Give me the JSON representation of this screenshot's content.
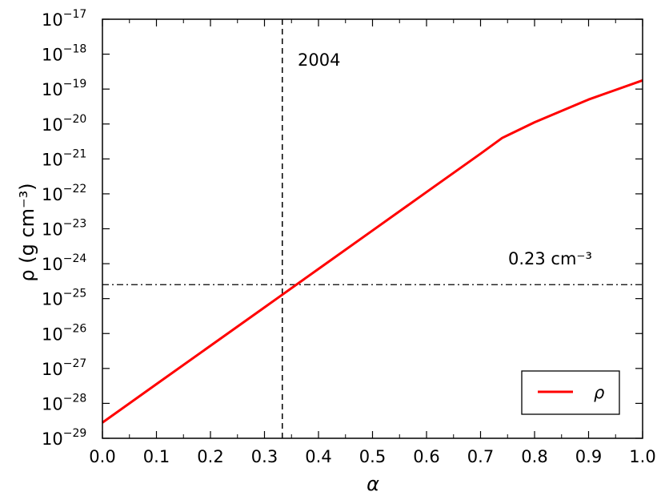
{
  "chart_data": {
    "type": "line",
    "xlabel": "α",
    "ylabel": "ρ (g cm⁻³)",
    "xlim": [
      0.0,
      1.0
    ],
    "ylim_log10": [
      -29,
      -17
    ],
    "yscale": "log",
    "x_ticks": [
      "0.0",
      "0.1",
      "0.2",
      "0.3",
      "0.4",
      "0.5",
      "0.6",
      "0.7",
      "0.8",
      "0.9",
      "1.0"
    ],
    "y_tick_exponents": [
      "−29",
      "−28",
      "−27",
      "−26",
      "−25",
      "−24",
      "−23",
      "−22",
      "−21",
      "−20",
      "−19",
      "−18",
      "−17"
    ],
    "series": [
      {
        "name": "ρ",
        "color": "#ff0000",
        "x": [
          0.0,
          0.1,
          0.2,
          0.3,
          0.33,
          0.4,
          0.5,
          0.6,
          0.7,
          0.74,
          0.8,
          0.9,
          1.0
        ],
        "y_log10": [
          -28.55,
          -27.45,
          -26.35,
          -25.25,
          -24.92,
          -24.15,
          -23.05,
          -21.95,
          -20.85,
          -20.4,
          -19.95,
          -19.3,
          -18.75
        ]
      }
    ],
    "annotations": [
      {
        "text": "2004",
        "type": "vertical-dashed-line",
        "x": 0.333
      },
      {
        "text": "0.23 cm⁻³",
        "type": "horizontal-dashdot-line",
        "y_log10": -24.6
      }
    ],
    "legend": {
      "position": "lower-right",
      "entries": [
        "ρ"
      ]
    },
    "grid": false
  }
}
